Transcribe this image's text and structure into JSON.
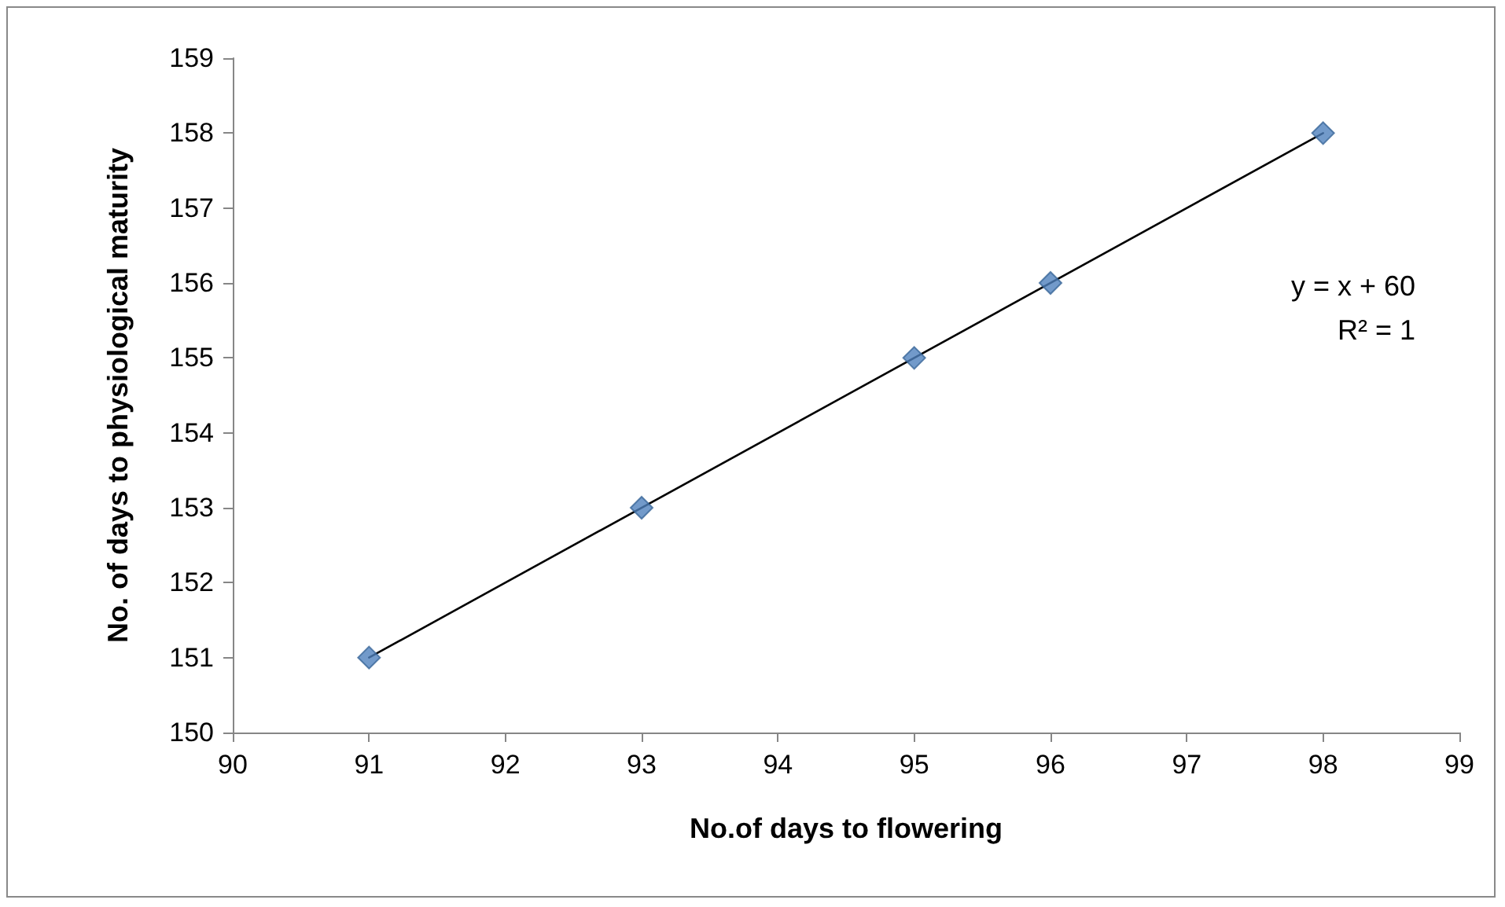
{
  "chart_data": {
    "type": "scatter",
    "xlabel": "No.of days to flowering",
    "ylabel": "No. of days to physiological maturity",
    "x": [
      91,
      93,
      95,
      96,
      98
    ],
    "series": [
      {
        "color": "#4f81bd",
        "marker": "diamond",
        "values": [
          151,
          153,
          155,
          156,
          158
        ]
      },
      {
        "type": "line",
        "color": "#000000",
        "marker": "none",
        "line_style": "solid",
        "x": [
          91,
          98
        ],
        "values": [
          151,
          158
        ]
      }
    ],
    "annotations": [
      "y = x + 60",
      "R² = 1"
    ],
    "xlim": [
      90,
      99
    ],
    "xticks": [
      90,
      91,
      92,
      93,
      94,
      95,
      96,
      97,
      98,
      99
    ],
    "ylim": [
      150,
      159
    ],
    "yticks": [
      150,
      151,
      152,
      153,
      154,
      155,
      156,
      157,
      158,
      159
    ],
    "grid": false
  }
}
